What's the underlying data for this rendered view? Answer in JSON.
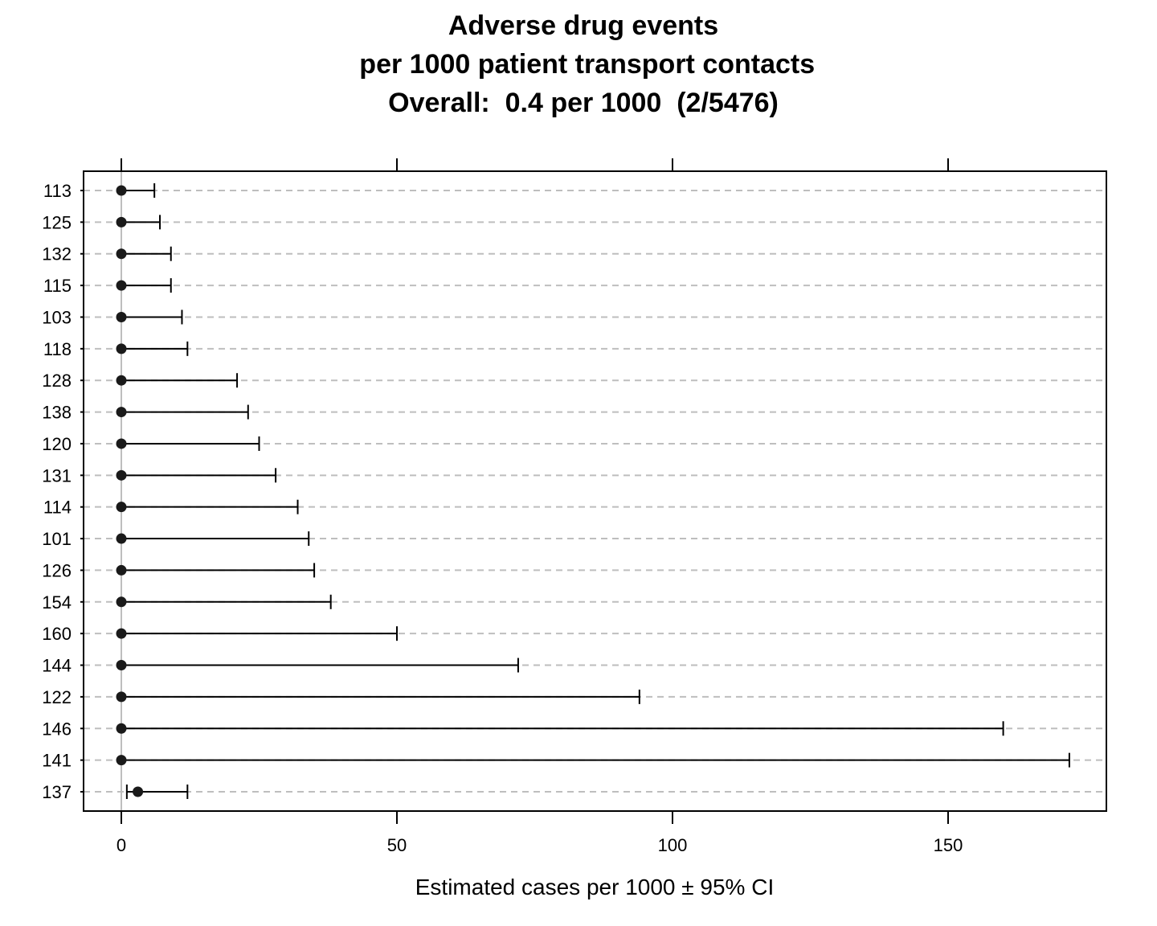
{
  "chart_data": {
    "type": "dot-errorbar",
    "title_lines": [
      "Adverse drug events",
      " per 1000 patient transport contacts",
      "Overall:  0.4 per 1000  (2/5476)"
    ],
    "xlabel": "Estimated cases per 1000 ±  95% CI",
    "ylabel": "",
    "xlim": [
      -7,
      179
    ],
    "xticks": [
      0,
      50,
      100,
      150
    ],
    "reference_line_x": 0,
    "grid": "horizontal-dashed",
    "rows": [
      {
        "label": "113",
        "estimate": 0,
        "lower": 0,
        "upper": 6
      },
      {
        "label": "125",
        "estimate": 0,
        "lower": 0,
        "upper": 7
      },
      {
        "label": "132",
        "estimate": 0,
        "lower": 0,
        "upper": 9
      },
      {
        "label": "115",
        "estimate": 0,
        "lower": 0,
        "upper": 9
      },
      {
        "label": "103",
        "estimate": 0,
        "lower": 0,
        "upper": 11
      },
      {
        "label": "118",
        "estimate": 0,
        "lower": 0,
        "upper": 12
      },
      {
        "label": "128",
        "estimate": 0,
        "lower": 0,
        "upper": 21
      },
      {
        "label": "138",
        "estimate": 0,
        "lower": 0,
        "upper": 23
      },
      {
        "label": "120",
        "estimate": 0,
        "lower": 0,
        "upper": 25
      },
      {
        "label": "131",
        "estimate": 0,
        "lower": 0,
        "upper": 28
      },
      {
        "label": "114",
        "estimate": 0,
        "lower": 0,
        "upper": 32
      },
      {
        "label": "101",
        "estimate": 0,
        "lower": 0,
        "upper": 34
      },
      {
        "label": "126",
        "estimate": 0,
        "lower": 0,
        "upper": 35
      },
      {
        "label": "154",
        "estimate": 0,
        "lower": 0,
        "upper": 38
      },
      {
        "label": "160",
        "estimate": 0,
        "lower": 0,
        "upper": 50
      },
      {
        "label": "144",
        "estimate": 0,
        "lower": 0,
        "upper": 72
      },
      {
        "label": "122",
        "estimate": 0,
        "lower": 0,
        "upper": 94
      },
      {
        "label": "146",
        "estimate": 0,
        "lower": 0,
        "upper": 160
      },
      {
        "label": "141",
        "estimate": 0,
        "lower": 0,
        "upper": 172
      },
      {
        "label": "137",
        "estimate": 3,
        "lower": 1,
        "upper": 12
      }
    ],
    "colors": {
      "points": "#1a1a1a",
      "bars": "#000000",
      "grid": "#bebebe",
      "reference": "#bebebe"
    }
  }
}
